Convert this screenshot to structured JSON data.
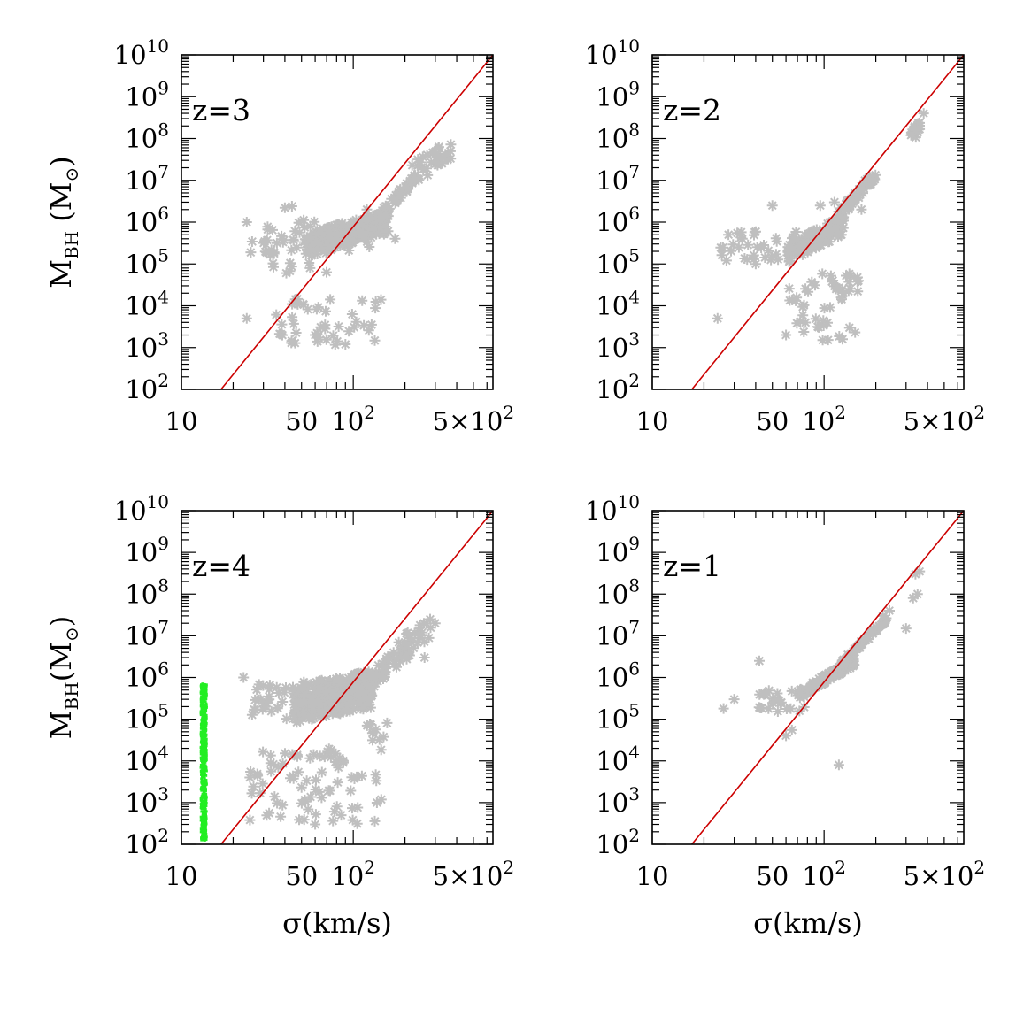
{
  "figure": {
    "colors": {
      "fit_line": "#cc0000",
      "points": "#bfbfbf",
      "green_points": "#22ee22",
      "axes": "#000000"
    }
  },
  "chart_data": [
    {
      "type": "scatter",
      "panel": "z=3",
      "label": "z=3",
      "ylabel": "M",
      "ylabel_sub": "BH",
      "ylabel_unit": "(M",
      "ylabel_unit_sub": "⊙",
      "ylabel_unit_close": ")",
      "xlabel": "",
      "x_scale": "log",
      "y_scale": "log",
      "xlim": [
        10,
        650
      ],
      "ylim": [
        100,
        10000000000
      ],
      "x_ticks": [
        10,
        50,
        100,
        500
      ],
      "x_tick_labels": [
        "10",
        "50",
        "10²",
        "5×10²"
      ],
      "y_tick_exponents": [
        2,
        3,
        4,
        5,
        6,
        7,
        8,
        9,
        10
      ],
      "fit_line": [
        [
          17,
          100
        ],
        [
          650,
          10000000000
        ]
      ],
      "clusters": [
        {
          "x_range": [
            55,
            160
          ],
          "y_range": [
            150000,
            2000000
          ],
          "n": 260,
          "corr": 0.5
        },
        {
          "x_range": [
            140,
            230
          ],
          "y_range": [
            1000000,
            15000000
          ],
          "n": 40,
          "corr": 0.8
        },
        {
          "x_range": [
            220,
            370
          ],
          "y_range": [
            8000000,
            100000000
          ],
          "n": 35,
          "corr": 0.5
        },
        {
          "x_range": [
            30,
            70
          ],
          "y_range": [
            60000,
            800000
          ],
          "n": 40,
          "corr": 0
        },
        {
          "x_range": [
            22,
            130
          ],
          "y_range": [
            150000,
            1500000
          ],
          "n": 25,
          "corr": 0
        },
        {
          "x_range": [
            35,
            140
          ],
          "y_range": [
            1000,
            15000
          ],
          "n": 45,
          "corr": 0
        }
      ],
      "points": [
        [
          24,
          1000000
        ],
        [
          24,
          5000
        ],
        [
          40,
          2200000
        ],
        [
          44,
          2400000
        ],
        [
          145,
          14000
        ],
        [
          175,
          400000
        ],
        [
          120,
          2000000
        ],
        [
          60,
          2000
        ],
        [
          90,
          1200
        ]
      ],
      "green_points": null
    },
    {
      "type": "scatter",
      "panel": "z=2",
      "label": "z=2",
      "ylabel": "",
      "xlabel": "",
      "x_scale": "log",
      "y_scale": "log",
      "xlim": [
        10,
        650
      ],
      "ylim": [
        100,
        10000000000
      ],
      "x_ticks": [
        10,
        50,
        100,
        500
      ],
      "x_tick_labels": [
        "10",
        "50",
        "10²",
        "5×10²"
      ],
      "y_tick_exponents": [
        2,
        3,
        4,
        5,
        6,
        7,
        8,
        9,
        10
      ],
      "fit_line": [
        [
          17,
          100
        ],
        [
          650,
          10000000000
        ]
      ],
      "clusters": [
        {
          "x_range": [
            60,
            130
          ],
          "y_range": [
            100000,
            1500000
          ],
          "n": 150,
          "corr": 0.6
        },
        {
          "x_range": [
            120,
            200
          ],
          "y_range": [
            1000000,
            20000000
          ],
          "n": 45,
          "corr": 0.8
        },
        {
          "x_range": [
            320,
            360
          ],
          "y_range": [
            90000000,
            250000000
          ],
          "n": 25,
          "corr": 0.3
        },
        {
          "x_range": [
            25,
            70
          ],
          "y_range": [
            100000,
            600000
          ],
          "n": 35,
          "corr": 0
        },
        {
          "x_range": [
            60,
            160
          ],
          "y_range": [
            1500,
            60000
          ],
          "n": 40,
          "corr": 0
        },
        {
          "x_range": [
            110,
            160
          ],
          "y_range": [
            20000,
            60000
          ],
          "n": 12,
          "corr": 0
        }
      ],
      "points": [
        [
          24,
          5000
        ],
        [
          40,
          100000
        ],
        [
          50,
          2500000
        ],
        [
          165,
          2000000
        ],
        [
          380,
          400000000
        ],
        [
          95,
          2500000
        ],
        [
          115,
          3000000
        ],
        [
          60,
          2000
        ]
      ],
      "green_points": null
    },
    {
      "type": "scatter",
      "panel": "z=4",
      "label": "z=4",
      "ylabel": "M",
      "ylabel_sub": "BH",
      "ylabel_unit": "(M",
      "ylabel_unit_sub": "⊙",
      "ylabel_unit_close": ")",
      "xlabel": "σ(km/s)",
      "x_scale": "log",
      "y_scale": "log",
      "xlim": [
        10,
        650
      ],
      "ylim": [
        100,
        10000000000
      ],
      "x_ticks": [
        10,
        50,
        100,
        500
      ],
      "x_tick_labels": [
        "10",
        "50",
        "10²",
        "5×10²"
      ],
      "y_tick_exponents": [
        2,
        3,
        4,
        5,
        6,
        7,
        8,
        9,
        10
      ],
      "fit_line": [
        [
          17,
          100
        ],
        [
          650,
          10000000000
        ]
      ],
      "clusters": [
        {
          "x_range": [
            45,
            130
          ],
          "y_range": [
            80000,
            1500000
          ],
          "n": 320,
          "corr": 0.3
        },
        {
          "x_range": [
            110,
            220
          ],
          "y_range": [
            300000,
            10000000
          ],
          "n": 60,
          "corr": 0.7
        },
        {
          "x_range": [
            180,
            290
          ],
          "y_range": [
            3000000,
            25000000
          ],
          "n": 20,
          "corr": 0.4
        },
        {
          "x_range": [
            25,
            60
          ],
          "y_range": [
            100000,
            800000
          ],
          "n": 40,
          "corr": 0
        },
        {
          "x_range": [
            25,
            150
          ],
          "y_range": [
            300,
            20000
          ],
          "n": 80,
          "corr": 0
        },
        {
          "x_range": [
            120,
            160
          ],
          "y_range": [
            30000,
            100000
          ],
          "n": 10,
          "corr": 0
        }
      ],
      "points": [
        [
          23,
          1000000
        ],
        [
          25,
          4000
        ],
        [
          60,
          300
        ],
        [
          85,
          500
        ],
        [
          280,
          25000000
        ],
        [
          260,
          3000000
        ],
        [
          300,
          20000000
        ]
      ],
      "green_points": {
        "x_range": [
          13.0,
          14.0
        ],
        "y_range": [
          120,
          700000
        ],
        "n": 700
      }
    },
    {
      "type": "scatter",
      "panel": "z=1",
      "label": "z=1",
      "ylabel": "",
      "xlabel": "σ(km/s)",
      "x_scale": "log",
      "y_scale": "log",
      "xlim": [
        10,
        650
      ],
      "ylim": [
        100,
        10000000000
      ],
      "x_ticks": [
        10,
        50,
        100,
        500
      ],
      "x_tick_labels": [
        "10",
        "50",
        "10²",
        "5×10²"
      ],
      "y_tick_exponents": [
        2,
        3,
        4,
        5,
        6,
        7,
        8,
        9,
        10
      ],
      "fit_line": [
        [
          17,
          100
        ],
        [
          650,
          10000000000
        ]
      ],
      "clusters": [
        {
          "x_range": [
            70,
            150
          ],
          "y_range": [
            300000,
            3000000
          ],
          "n": 140,
          "corr": 0.8
        },
        {
          "x_range": [
            120,
            230
          ],
          "y_range": [
            1500000,
            30000000
          ],
          "n": 60,
          "corr": 0.9
        },
        {
          "x_range": [
            40,
            80
          ],
          "y_range": [
            150000,
            500000
          ],
          "n": 25,
          "corr": 0
        }
      ],
      "points": [
        [
          26,
          180000
        ],
        [
          30,
          300000
        ],
        [
          42,
          2500000
        ],
        [
          60,
          40000
        ],
        [
          65,
          55000
        ],
        [
          122,
          8000
        ],
        [
          300,
          15000000
        ],
        [
          340,
          300000000
        ],
        [
          360,
          350000000
        ],
        [
          330,
          80000000
        ],
        [
          350,
          100000000
        ],
        [
          240,
          40000000
        ],
        [
          220,
          30000000
        ]
      ],
      "green_points": null
    }
  ]
}
